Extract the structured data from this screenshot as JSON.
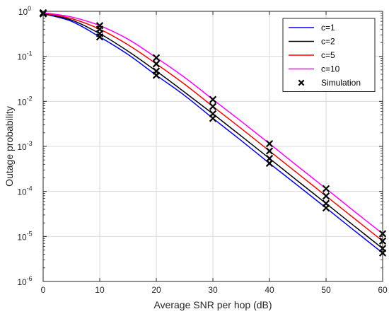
{
  "chart_data": {
    "type": "line",
    "title": "",
    "xlabel": "Average SNR per hop (dB)",
    "ylabel": "Outage probability",
    "xlim": [
      0,
      60
    ],
    "ylim": [
      1e-06,
      1
    ],
    "yscale": "log",
    "grid": true,
    "legend_position": "top-right",
    "x_ticks": [
      0,
      10,
      20,
      30,
      40,
      50,
      60
    ],
    "y_ticks": [
      {
        "value": 1,
        "exp": "0"
      },
      {
        "value": 0.1,
        "exp": "-1"
      },
      {
        "value": 0.01,
        "exp": "-2"
      },
      {
        "value": 0.001,
        "exp": "-3"
      },
      {
        "value": 0.0001,
        "exp": "-4"
      },
      {
        "value": 1e-05,
        "exp": "-5"
      },
      {
        "value": 1e-06,
        "exp": "-6"
      }
    ],
    "y_tick_base": "10",
    "series": [
      {
        "name": "c=1",
        "color": "#0000ff",
        "x": [
          0,
          5,
          10,
          15,
          20,
          25,
          30,
          35,
          40,
          45,
          50,
          55,
          60
        ],
        "y": [
          0.88,
          0.6,
          0.27,
          0.11,
          0.038,
          0.0135,
          0.0042,
          0.00135,
          0.00042,
          0.000135,
          4.3e-05,
          1.35e-05,
          4.3e-06
        ]
      },
      {
        "name": "c=2",
        "color": "#000000",
        "x": [
          0,
          5,
          10,
          15,
          20,
          25,
          30,
          35,
          40,
          45,
          50,
          55,
          60
        ],
        "y": [
          0.9,
          0.64,
          0.32,
          0.13,
          0.047,
          0.016,
          0.0053,
          0.0017,
          0.00054,
          0.00017,
          5.4e-05,
          1.7e-05,
          5.4e-06
        ]
      },
      {
        "name": "c=5",
        "color": "#ff0000",
        "x": [
          0,
          5,
          10,
          15,
          20,
          25,
          30,
          35,
          40,
          45,
          50,
          55,
          60
        ],
        "y": [
          0.91,
          0.69,
          0.4,
          0.18,
          0.068,
          0.024,
          0.0077,
          0.0025,
          0.00079,
          0.00025,
          7.9e-05,
          2.5e-05,
          7.9e-06
        ]
      },
      {
        "name": "c=10",
        "color": "#ff00ff",
        "x": [
          0,
          5,
          10,
          15,
          20,
          25,
          30,
          35,
          40,
          45,
          50,
          55,
          60
        ],
        "y": [
          0.93,
          0.75,
          0.48,
          0.24,
          0.093,
          0.034,
          0.011,
          0.0036,
          0.00115,
          0.00036,
          0.000115,
          3.6e-05,
          1.15e-05
        ]
      }
    ],
    "simulation": {
      "name": "Simulation",
      "marker": "x",
      "color": "#000000",
      "points": [
        {
          "x": 0,
          "y": 0.88
        },
        {
          "x": 0,
          "y": 0.9
        },
        {
          "x": 0,
          "y": 0.91
        },
        {
          "x": 0,
          "y": 0.93
        },
        {
          "x": 10,
          "y": 0.27
        },
        {
          "x": 10,
          "y": 0.32
        },
        {
          "x": 10,
          "y": 0.4
        },
        {
          "x": 10,
          "y": 0.48
        },
        {
          "x": 20,
          "y": 0.038
        },
        {
          "x": 20,
          "y": 0.047
        },
        {
          "x": 20,
          "y": 0.068
        },
        {
          "x": 20,
          "y": 0.093
        },
        {
          "x": 30,
          "y": 0.0042
        },
        {
          "x": 30,
          "y": 0.0053
        },
        {
          "x": 30,
          "y": 0.0077
        },
        {
          "x": 30,
          "y": 0.011
        },
        {
          "x": 40,
          "y": 0.00042
        },
        {
          "x": 40,
          "y": 0.00054
        },
        {
          "x": 40,
          "y": 0.00079
        },
        {
          "x": 40,
          "y": 0.00115
        },
        {
          "x": 50,
          "y": 4.3e-05
        },
        {
          "x": 50,
          "y": 5.4e-05
        },
        {
          "x": 50,
          "y": 7.9e-05
        },
        {
          "x": 50,
          "y": 0.000115
        },
        {
          "x": 60,
          "y": 4.3e-06
        },
        {
          "x": 60,
          "y": 5.4e-06
        },
        {
          "x": 60,
          "y": 7.9e-06
        },
        {
          "x": 60,
          "y": 1.15e-05
        }
      ]
    }
  }
}
